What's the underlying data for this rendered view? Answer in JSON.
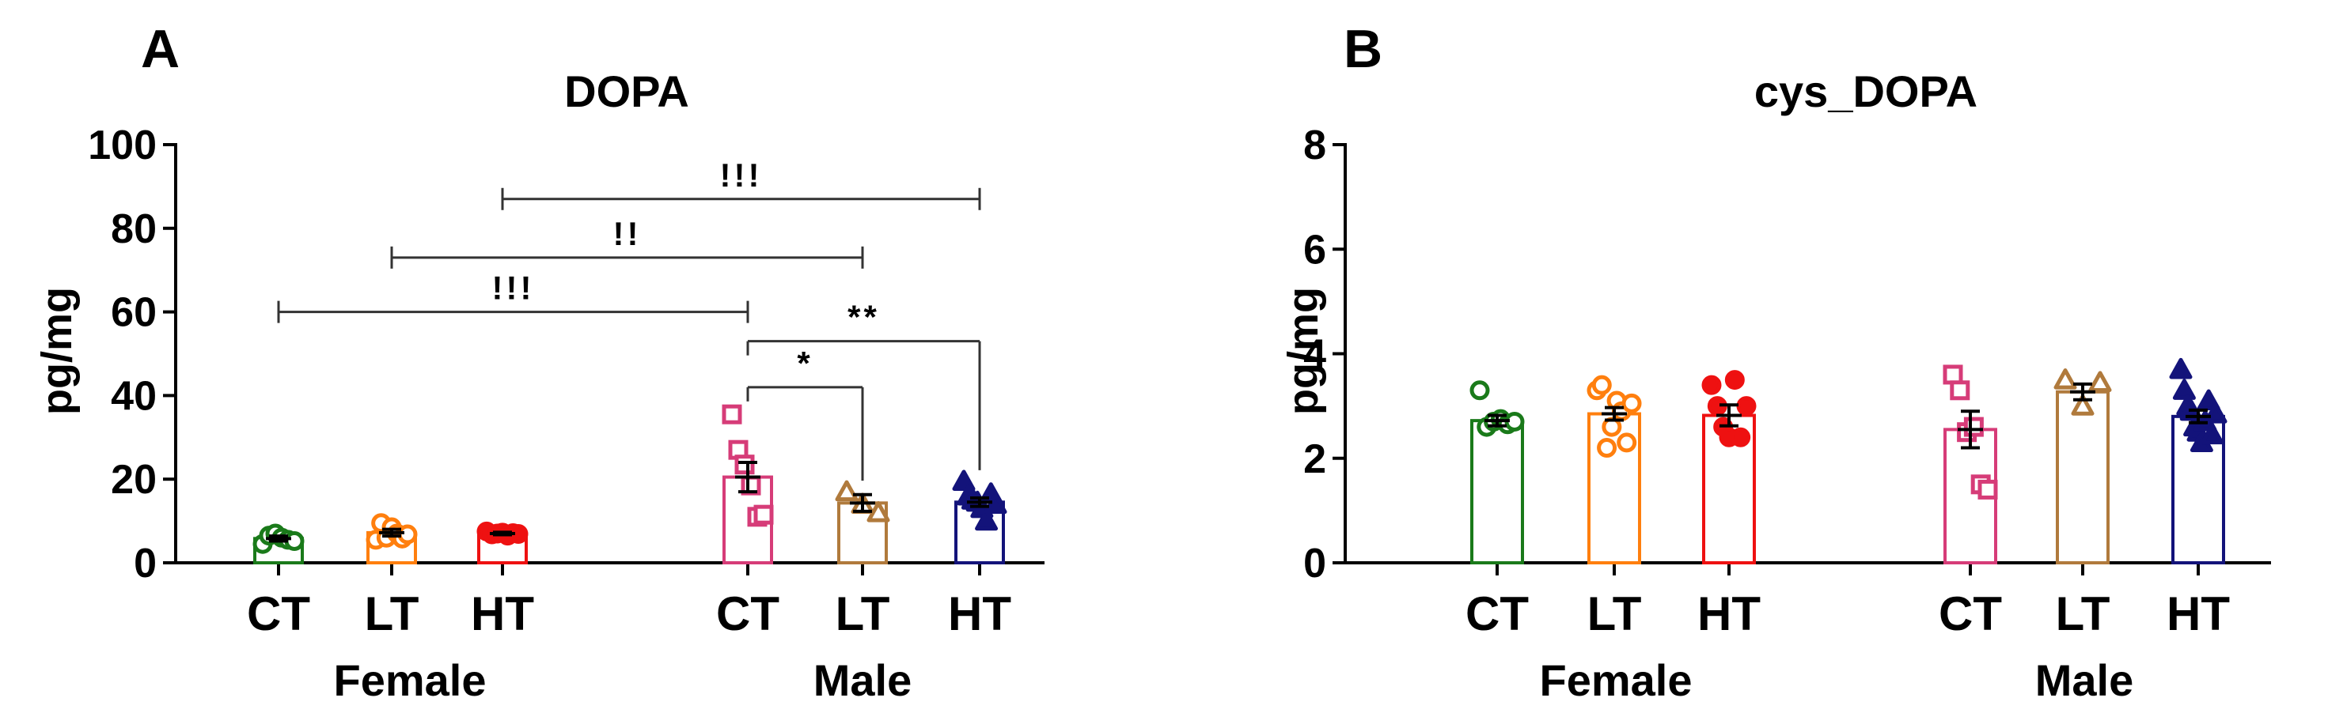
{
  "figure": {
    "background": "#ffffff"
  },
  "chart_data": [
    {
      "panel": "A",
      "type": "bar",
      "title": "DOPA",
      "xlabel": "",
      "ylabel": "pg/mg",
      "ylim": [
        0,
        100
      ],
      "yticks": [
        "0",
        "20",
        "40",
        "60",
        "80",
        "100"
      ],
      "groups": [
        {
          "name": "Female",
          "categories": [
            "CT",
            "LT",
            "HT"
          ]
        },
        {
          "name": "Male",
          "categories": [
            "CT",
            "LT",
            "HT"
          ]
        }
      ],
      "series": [
        {
          "group": "Female",
          "category": "CT",
          "color": "#1a7a1a",
          "marker": "circle-open",
          "mean": 5.8,
          "sem": 0.6,
          "points": [
            4.5,
            6.5,
            7.0,
            6.0,
            5.5,
            5.2
          ]
        },
        {
          "group": "Female",
          "category": "LT",
          "color": "#ff7f0e",
          "marker": "circle-open",
          "mean": 7.2,
          "sem": 0.8,
          "points": [
            5.5,
            9.5,
            6.0,
            8.5,
            7.0,
            5.8,
            6.8
          ]
        },
        {
          "group": "Female",
          "category": "HT",
          "color": "#ee1111",
          "marker": "circle-filled",
          "mean": 7.0,
          "sem": 0.3,
          "points": [
            7.5,
            6.8,
            7.0,
            7.2,
            6.5,
            7.1,
            6.9
          ]
        },
        {
          "group": "Male",
          "category": "CT",
          "color": "#d63c78",
          "marker": "square-open",
          "mean": 20.5,
          "sem": 3.5,
          "points": [
            35.5,
            27.0,
            23.5,
            18.5,
            11.0,
            11.5
          ]
        },
        {
          "group": "Male",
          "category": "LT",
          "color": "#b07a3c",
          "marker": "triangle-open",
          "mean": 14.3,
          "sem": 2.0,
          "points": [
            17.0,
            14.0,
            12.0
          ]
        },
        {
          "group": "Male",
          "category": "HT",
          "color": "#13137a",
          "marker": "triangle-filled",
          "mean": 14.5,
          "sem": 1.0,
          "points": [
            19.5,
            16.0,
            15.0,
            14.5,
            13.0,
            10.0,
            16.5,
            14.0
          ]
        }
      ],
      "significance": [
        {
          "from": "Female CT",
          "to": "Male CT",
          "label": "!!!",
          "y": 60
        },
        {
          "from": "Female LT",
          "to": "Male LT",
          "label": "!!",
          "y": 73
        },
        {
          "from": "Female HT",
          "to": "Male HT",
          "label": "!!!",
          "y": 87
        },
        {
          "from": "Male CT",
          "to": "Male LT",
          "label": "*",
          "y": 42
        },
        {
          "from": "Male CT",
          "to": "Male HT",
          "label": "**",
          "y": 53
        }
      ]
    },
    {
      "panel": "B",
      "type": "bar",
      "title": "cys_DOPA",
      "xlabel": "",
      "ylabel": "pg/mg",
      "ylim": [
        0,
        8
      ],
      "yticks": [
        "0",
        "2",
        "4",
        "6",
        "8"
      ],
      "groups": [
        {
          "name": "Female",
          "categories": [
            "CT",
            "LT",
            "HT"
          ]
        },
        {
          "name": "Male",
          "categories": [
            "CT",
            "LT",
            "HT"
          ]
        }
      ],
      "series": [
        {
          "group": "Female",
          "category": "CT",
          "color": "#1a7a1a",
          "marker": "circle-open",
          "mean": 2.72,
          "sem": 0.1,
          "points": [
            3.3,
            2.6,
            2.7,
            2.75,
            2.65,
            2.7
          ]
        },
        {
          "group": "Female",
          "category": "LT",
          "color": "#ff7f0e",
          "marker": "circle-open",
          "mean": 2.85,
          "sem": 0.12,
          "points": [
            3.3,
            3.4,
            2.2,
            2.6,
            3.1,
            2.9,
            2.3,
            3.05
          ]
        },
        {
          "group": "Female",
          "category": "HT",
          "color": "#ee1111",
          "marker": "circle-filled",
          "mean": 2.82,
          "sem": 0.2,
          "points": [
            3.4,
            3.0,
            2.6,
            2.4,
            3.5,
            2.4,
            3.0
          ]
        },
        {
          "group": "Male",
          "category": "CT",
          "color": "#d63c78",
          "marker": "square-open",
          "mean": 2.55,
          "sem": 0.35,
          "points": [
            3.6,
            3.3,
            2.5,
            2.6,
            1.5,
            1.4
          ]
        },
        {
          "group": "Male",
          "category": "LT",
          "color": "#b07a3c",
          "marker": "triangle-open",
          "mean": 3.27,
          "sem": 0.15,
          "points": [
            3.5,
            3.0,
            3.45
          ]
        },
        {
          "group": "Male",
          "category": "HT",
          "color": "#13137a",
          "marker": "triangle-filled",
          "mean": 2.8,
          "sem": 0.12,
          "points": [
            3.7,
            3.3,
            3.0,
            2.9,
            2.6,
            2.5,
            2.3,
            2.7,
            3.1,
            2.45,
            2.85
          ]
        }
      ],
      "significance": []
    }
  ]
}
